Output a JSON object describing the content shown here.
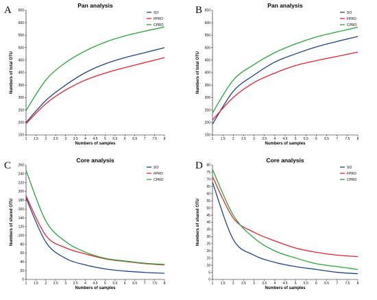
{
  "chart_data": [
    {
      "panel": "A",
      "type": "line",
      "title": "Pan analysis",
      "xlabel": "Numbers of samples",
      "ylabel": "Numbers of total OTU",
      "xlim": [
        1,
        8
      ],
      "ylim": [
        150,
        650
      ],
      "xticks": [
        "1",
        "1.5",
        "2",
        "2.5",
        "3",
        "3.5",
        "4",
        "4.5",
        "5",
        "5.5",
        "6",
        "6.5",
        "7",
        "7.5",
        "8"
      ],
      "yticks": [
        "150",
        "200",
        "250",
        "300",
        "350",
        "400",
        "450",
        "500",
        "550",
        "600",
        "650"
      ],
      "legend_position": "top-right",
      "x": [
        1,
        2,
        3,
        4,
        5,
        6,
        7,
        8
      ],
      "series": [
        {
          "name": "SO",
          "color": "#1f3f8a",
          "values": [
            200,
            288,
            350,
            400,
            435,
            460,
            480,
            500
          ]
        },
        {
          "name": "FPRO",
          "color": "#e8202a",
          "values": [
            195,
            275,
            330,
            370,
            398,
            420,
            440,
            460
          ]
        },
        {
          "name": "CPRO",
          "color": "#22a832",
          "values": [
            248,
            370,
            440,
            487,
            522,
            547,
            566,
            583
          ]
        }
      ]
    },
    {
      "panel": "B",
      "type": "line",
      "title": "Pan analysis",
      "xlabel": "Numbers of samples",
      "ylabel": "Numbers of total OTU",
      "xlim": [
        1,
        8
      ],
      "ylim": [
        150,
        650
      ],
      "xticks": [
        "1",
        "1.5",
        "2",
        "2.5",
        "3",
        "3.5",
        "4",
        "4.5",
        "5",
        "5.5",
        "6",
        "6.5",
        "7",
        "7.5",
        "8"
      ],
      "yticks": [
        "150",
        "200",
        "250",
        "300",
        "350",
        "400",
        "450",
        "500",
        "550",
        "600",
        "650"
      ],
      "legend_position": "top-right",
      "x": [
        1,
        2,
        3,
        4,
        5,
        6,
        7,
        8
      ],
      "series": [
        {
          "name": "SO",
          "color": "#1f3f8a",
          "values": [
            193,
            325,
            390,
            442,
            475,
            503,
            525,
            545
          ]
        },
        {
          "name": "FPRO",
          "color": "#e8202a",
          "values": [
            210,
            300,
            360,
            398,
            428,
            448,
            465,
            482
          ]
        },
        {
          "name": "CPRO",
          "color": "#22a832",
          "values": [
            238,
            370,
            432,
            480,
            515,
            543,
            563,
            582
          ]
        }
      ]
    },
    {
      "panel": "C",
      "type": "line",
      "title": "Core analysis",
      "xlabel": "Numbers of samples",
      "ylabel": "Numbers of shared OTU",
      "xlim": [
        1,
        8
      ],
      "ylim": [
        0,
        260
      ],
      "xticks": [
        "1",
        "1.5",
        "2",
        "2.5",
        "3",
        "3.5",
        "4",
        "4.5",
        "5",
        "5.5",
        "6",
        "6.5",
        "7",
        "7.5",
        "8"
      ],
      "yticks": [
        "0",
        "20",
        "40",
        "60",
        "80",
        "100",
        "120",
        "140",
        "160",
        "180",
        "200",
        "220",
        "240",
        "260"
      ],
      "legend_position": "top-right",
      "x": [
        1,
        2,
        3,
        4,
        5,
        6,
        7,
        8
      ],
      "series": [
        {
          "name": "SO",
          "color": "#1f3f8a",
          "values": [
            185,
            85,
            48,
            33,
            24,
            19,
            16,
            14
          ]
        },
        {
          "name": "FPRO",
          "color": "#e8202a",
          "values": [
            190,
            100,
            72,
            58,
            47,
            41,
            36,
            33
          ]
        },
        {
          "name": "CPRO",
          "color": "#22a832",
          "values": [
            248,
            133,
            86,
            62,
            48,
            42,
            37,
            34
          ]
        }
      ]
    },
    {
      "panel": "D",
      "type": "line",
      "title": "Core analysis",
      "xlabel": "Numbers of samples",
      "ylabel": "Numbers of shared OTU",
      "xlim": [
        1,
        8
      ],
      "ylim": [
        0,
        80
      ],
      "xticks": [
        "1",
        "1.5",
        "2",
        "2.5",
        "3",
        "3.5",
        "4",
        "4.5",
        "5",
        "5.5",
        "6",
        "6.5",
        "7",
        "7.5",
        "8"
      ],
      "yticks": [
        "0",
        "5",
        "10",
        "15",
        "20",
        "25",
        "30",
        "35",
        "40",
        "45",
        "50",
        "55",
        "60",
        "65",
        "70",
        "75",
        "80"
      ],
      "legend_position": "top-right",
      "x": [
        1,
        2,
        3,
        4,
        5,
        6,
        7,
        8
      ],
      "series": [
        {
          "name": "SO",
          "color": "#1f3f8a",
          "values": [
            68,
            28,
            17,
            12,
            9,
            7,
            5,
            4
          ]
        },
        {
          "name": "FPRO",
          "color": "#e8202a",
          "values": [
            72,
            43,
            33,
            27,
            22,
            19,
            17,
            16
          ]
        },
        {
          "name": "CPRO",
          "color": "#22a832",
          "values": [
            77,
            45,
            29,
            20,
            15,
            11,
            9,
            7
          ]
        }
      ]
    }
  ]
}
